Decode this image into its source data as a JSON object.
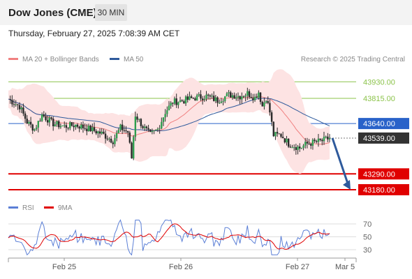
{
  "header": {
    "instrument": "Dow Jones (CME)",
    "interval": "30 MIN",
    "datetime": "Thursday, February 27, 2025 7:08:39 AM CET"
  },
  "legend": {
    "items": [
      {
        "label": "MA 20 + Bollinger Bands",
        "color": "#f08080"
      },
      {
        "label": "MA 50",
        "color": "#2e5a9c"
      }
    ],
    "copyright": "Research © 2025 Trading Central"
  },
  "price_levels": [
    {
      "label": "43930.00",
      "value": 43930,
      "kind": "resistance",
      "color": "#8bc34a"
    },
    {
      "label": "43815.00",
      "value": 43815,
      "kind": "resistance",
      "color": "#8bc34a"
    },
    {
      "label": "43640.00",
      "value": 43640,
      "kind": "pivot",
      "color": "#2962c9"
    },
    {
      "label": "43539.00",
      "value": 43539,
      "kind": "last",
      "color": "#333333"
    },
    {
      "label": "43290.00",
      "value": 43290,
      "kind": "support",
      "color": "#e00000"
    },
    {
      "label": "43180.00",
      "value": 43180,
      "kind": "support",
      "color": "#e00000"
    }
  ],
  "rsi": {
    "legend": [
      {
        "label": "RSI",
        "color": "#5b7fd6"
      },
      {
        "label": "9MA",
        "color": "#e00000"
      }
    ],
    "levels": [
      "70",
      "50",
      "30"
    ]
  },
  "x_axis": {
    "labels": [
      "Feb 25",
      "Feb 26",
      "Feb 27",
      "Mar 5"
    ]
  },
  "chart_data": {
    "type": "candlestick",
    "title": "Dow Jones (CME)",
    "price_range": [
      43150,
      44020
    ],
    "support_levels": [
      43290,
      43180
    ],
    "resistance_levels": [
      43930,
      43815
    ],
    "pivot": 43640,
    "last_price": 43539,
    "rsi_range": [
      20,
      80
    ],
    "forecast_arrow": {
      "from": 43539,
      "to": 43180
    }
  }
}
